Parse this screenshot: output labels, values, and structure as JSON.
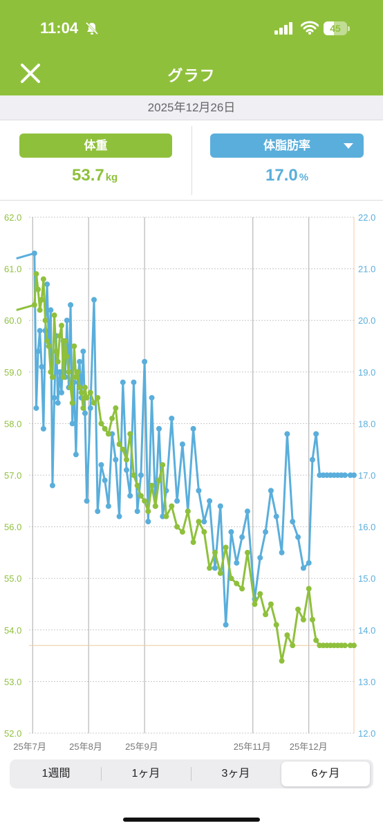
{
  "status": {
    "time": "11:04",
    "battery": "45",
    "battery_level": 0.45,
    "icons": [
      "bell-slash-icon",
      "signal-icon",
      "wifi-icon",
      "battery-icon"
    ]
  },
  "nav": {
    "title": "グラフ",
    "close_icon": "close-icon"
  },
  "date": "2025年12月26日",
  "metrics": {
    "weight": {
      "label": "体重",
      "value": "53.7",
      "unit": "kg",
      "color": "#8fc03c"
    },
    "fat": {
      "label": "体脂肪率",
      "value": "17.0",
      "unit": "%",
      "color": "#5aaedb",
      "dropdown_icon": "triangle-down-icon"
    }
  },
  "chart_data": {
    "type": "line",
    "left_axis": {
      "min": 52,
      "max": 62,
      "ticks": [
        "52.0",
        "53.0",
        "54.0",
        "55.0",
        "56.0",
        "57.0",
        "58.0",
        "59.0",
        "60.0",
        "61.0",
        "62.0"
      ]
    },
    "right_axis": {
      "min": 12,
      "max": 22,
      "ticks": [
        "12.0",
        "13.0",
        "14.0",
        "15.0",
        "16.0",
        "17.0",
        "18.0",
        "19.0",
        "20.0",
        "21.0",
        "22.0"
      ]
    },
    "x_axis": {
      "min": "2025-06-29",
      "max": "2025-12-26",
      "labels": [
        "25年7月",
        "25年8月",
        "25年9月",
        "25年11月",
        "25年12月"
      ]
    },
    "grid": true,
    "reference_line": {
      "axis": "left",
      "value": 53.7
    },
    "series": [
      {
        "color": "#8fc03c",
        "axis": "left",
        "x": [
          "2025-06-22",
          "2025-07-02",
          "2025-07-03",
          "2025-07-04",
          "2025-07-05",
          "2025-07-06",
          "2025-07-07",
          "2025-07-08",
          "2025-07-09",
          "2025-07-10",
          "2025-07-11",
          "2025-07-12",
          "2025-07-13",
          "2025-07-14",
          "2025-07-15",
          "2025-07-16",
          "2025-07-17",
          "2025-07-18",
          "2025-07-19",
          "2025-07-20",
          "2025-07-21",
          "2025-07-22",
          "2025-07-23",
          "2025-07-24",
          "2025-07-25",
          "2025-07-26",
          "2025-07-27",
          "2025-07-28",
          "2025-07-29",
          "2025-07-30",
          "2025-07-31",
          "2025-08-02",
          "2025-08-04",
          "2025-08-06",
          "2025-08-08",
          "2025-08-10",
          "2025-08-12",
          "2025-08-14",
          "2025-08-16",
          "2025-08-18",
          "2025-08-20",
          "2025-08-22",
          "2025-08-24",
          "2025-08-26",
          "2025-08-28",
          "2025-08-30",
          "2025-09-01",
          "2025-09-03",
          "2025-09-05",
          "2025-09-07",
          "2025-09-09",
          "2025-09-11",
          "2025-09-13",
          "2025-09-16",
          "2025-09-19",
          "2025-09-22",
          "2025-09-25",
          "2025-09-28",
          "2025-10-01",
          "2025-10-04",
          "2025-10-07",
          "2025-10-10",
          "2025-10-13",
          "2025-10-16",
          "2025-10-19",
          "2025-10-22",
          "2025-10-25",
          "2025-10-28",
          "2025-11-01",
          "2025-11-04",
          "2025-11-07",
          "2025-11-10",
          "2025-11-13",
          "2025-11-16",
          "2025-11-19",
          "2025-11-22",
          "2025-11-25",
          "2025-11-28",
          "2025-12-01",
          "2025-12-03",
          "2025-12-05",
          "2025-12-07",
          "2025-12-09",
          "2025-12-11",
          "2025-12-13",
          "2025-12-15",
          "2025-12-17",
          "2025-12-19",
          "2025-12-21",
          "2025-12-24",
          "2025-12-26"
        ],
        "y": [
          60.2,
          60.3,
          60.9,
          60.6,
          60.2,
          60.4,
          60.8,
          60.0,
          59.6,
          59.5,
          59.0,
          58.9,
          60.1,
          59.4,
          59.2,
          59.7,
          59.9,
          58.9,
          59.6,
          59.3,
          59.0,
          58.7,
          58.4,
          59.5,
          58.9,
          59.0,
          58.7,
          58.6,
          58.3,
          58.7,
          58.5,
          58.6,
          58.4,
          58.5,
          58.0,
          57.9,
          57.8,
          58.1,
          58.3,
          57.6,
          57.5,
          57.3,
          57.8,
          57.0,
          56.8,
          56.6,
          56.5,
          56.3,
          56.8,
          56.4,
          56.9,
          57.2,
          56.2,
          56.4,
          56.0,
          55.9,
          56.3,
          55.7,
          56.1,
          55.9,
          55.2,
          55.5,
          55.1,
          55.6,
          55.0,
          54.9,
          54.8,
          55.5,
          54.5,
          54.7,
          54.3,
          54.5,
          54.1,
          53.4,
          53.9,
          53.7,
          54.4,
          54.2,
          54.8,
          54.2,
          53.8,
          53.7,
          53.7,
          53.7,
          53.7,
          53.7,
          53.7,
          53.7,
          53.7,
          53.7,
          53.7
        ]
      },
      {
        "color": "#5aaedb",
        "axis": "right",
        "x": [
          "2025-06-22",
          "2025-07-02",
          "2025-07-03",
          "2025-07-04",
          "2025-07-05",
          "2025-07-06",
          "2025-07-07",
          "2025-07-08",
          "2025-07-09",
          "2025-07-10",
          "2025-07-11",
          "2025-07-12",
          "2025-07-13",
          "2025-07-14",
          "2025-07-15",
          "2025-07-16",
          "2025-07-17",
          "2025-07-18",
          "2025-07-19",
          "2025-07-20",
          "2025-07-21",
          "2025-07-22",
          "2025-07-23",
          "2025-07-24",
          "2025-07-25",
          "2025-07-26",
          "2025-07-27",
          "2025-07-28",
          "2025-07-29",
          "2025-07-30",
          "2025-07-31",
          "2025-08-02",
          "2025-08-04",
          "2025-08-06",
          "2025-08-08",
          "2025-08-10",
          "2025-08-12",
          "2025-08-14",
          "2025-08-16",
          "2025-08-18",
          "2025-08-20",
          "2025-08-22",
          "2025-08-24",
          "2025-08-26",
          "2025-08-28",
          "2025-08-30",
          "2025-09-01",
          "2025-09-03",
          "2025-09-05",
          "2025-09-07",
          "2025-09-09",
          "2025-09-11",
          "2025-09-13",
          "2025-09-16",
          "2025-09-19",
          "2025-09-22",
          "2025-09-25",
          "2025-09-28",
          "2025-10-01",
          "2025-10-04",
          "2025-10-07",
          "2025-10-10",
          "2025-10-13",
          "2025-10-16",
          "2025-10-19",
          "2025-10-22",
          "2025-10-25",
          "2025-10-28",
          "2025-11-01",
          "2025-11-04",
          "2025-11-07",
          "2025-11-10",
          "2025-11-13",
          "2025-11-16",
          "2025-11-19",
          "2025-11-22",
          "2025-11-25",
          "2025-11-28",
          "2025-12-01",
          "2025-12-03",
          "2025-12-05",
          "2025-12-07",
          "2025-12-09",
          "2025-12-11",
          "2025-12-13",
          "2025-12-15",
          "2025-12-17",
          "2025-12-19",
          "2025-12-21",
          "2025-12-24",
          "2025-12-26"
        ],
        "y": [
          21.2,
          21.3,
          18.3,
          19.4,
          19.8,
          19.1,
          17.9,
          19.8,
          20.7,
          19.5,
          20.2,
          16.8,
          18.5,
          19.7,
          18.4,
          19.0,
          18.6,
          19.6,
          18.9,
          20.0,
          18.7,
          20.3,
          18.0,
          18.8,
          17.4,
          18.9,
          19.2,
          18.5,
          19.4,
          18.2,
          16.5,
          18.3,
          20.4,
          16.3,
          17.2,
          16.9,
          16.4,
          17.8,
          17.3,
          16.2,
          18.8,
          17.1,
          16.6,
          18.8,
          16.3,
          17.0,
          19.2,
          16.1,
          18.5,
          16.4,
          17.9,
          16.2,
          16.7,
          18.1,
          16.5,
          17.6,
          16.3,
          17.9,
          16.7,
          16.1,
          16.5,
          15.2,
          16.4,
          14.1,
          15.9,
          15.3,
          15.8,
          16.3,
          14.6,
          15.4,
          15.9,
          16.7,
          16.2,
          15.5,
          17.8,
          16.1,
          15.8,
          15.2,
          15.3,
          17.3,
          17.8,
          17.0,
          17.0,
          17.0,
          17.0,
          17.0,
          17.0,
          17.0,
          17.0,
          17.0,
          17.0
        ]
      }
    ]
  },
  "ranges": [
    {
      "label": "1週間",
      "active": false
    },
    {
      "label": "1ヶ月",
      "active": false
    },
    {
      "label": "3ヶ月",
      "active": false
    },
    {
      "label": "6ヶ月",
      "active": true
    }
  ]
}
